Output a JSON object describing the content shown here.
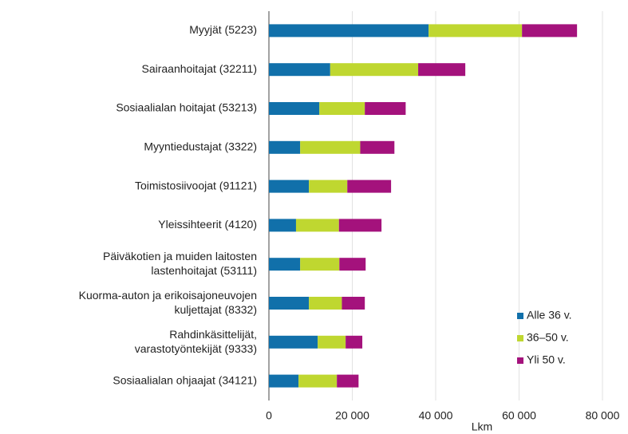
{
  "chart_data": {
    "type": "stacked_barh",
    "categories": [
      "Myyjät (5223)",
      "Sairaanhoitajat (32211)",
      "Sosiaalialan hoitajat (53213)",
      "Myyntiedustajat (3322)",
      "Toimistosiivoojat (91121)",
      "Yleissihteerit (4120)",
      "Päiväkotien ja muiden laitosten\nlastenhoitajat (53111)",
      "Kuorma-auton ja erikoisajoneuvojen\nkuljettajat (8332)",
      "Rahdinkäsittelijät,\nvarastotyöntekijät (9333)",
      "Sosiaalialan ohjaajat (34121)"
    ],
    "series": [
      {
        "name": "Alle 36 v.",
        "color": "#1170aa",
        "values": [
          38300,
          14700,
          12100,
          7500,
          9600,
          6500,
          7500,
          9600,
          11700,
          7100
        ]
      },
      {
        "name": "36–50 v.",
        "color": "#bfd730",
        "values": [
          22400,
          21100,
          10900,
          14400,
          9200,
          10300,
          9400,
          7900,
          6700,
          9200
        ]
      },
      {
        "name": "Yli 50 v.",
        "color": "#a4127c",
        "values": [
          13200,
          11300,
          9800,
          8200,
          10500,
          10200,
          6300,
          5500,
          4000,
          5200
        ]
      }
    ],
    "x_label": "Lkm",
    "xlim": [
      0,
      80000
    ],
    "xticks": [
      0,
      {
        "value": 20000,
        "label": "20 000"
      },
      {
        "value": 40000,
        "label": "40 000"
      },
      {
        "value": 60000,
        "label": "60 000"
      },
      {
        "value": 80000,
        "label": "80 000"
      }
    ],
    "grid": true,
    "legend": "lower right"
  }
}
